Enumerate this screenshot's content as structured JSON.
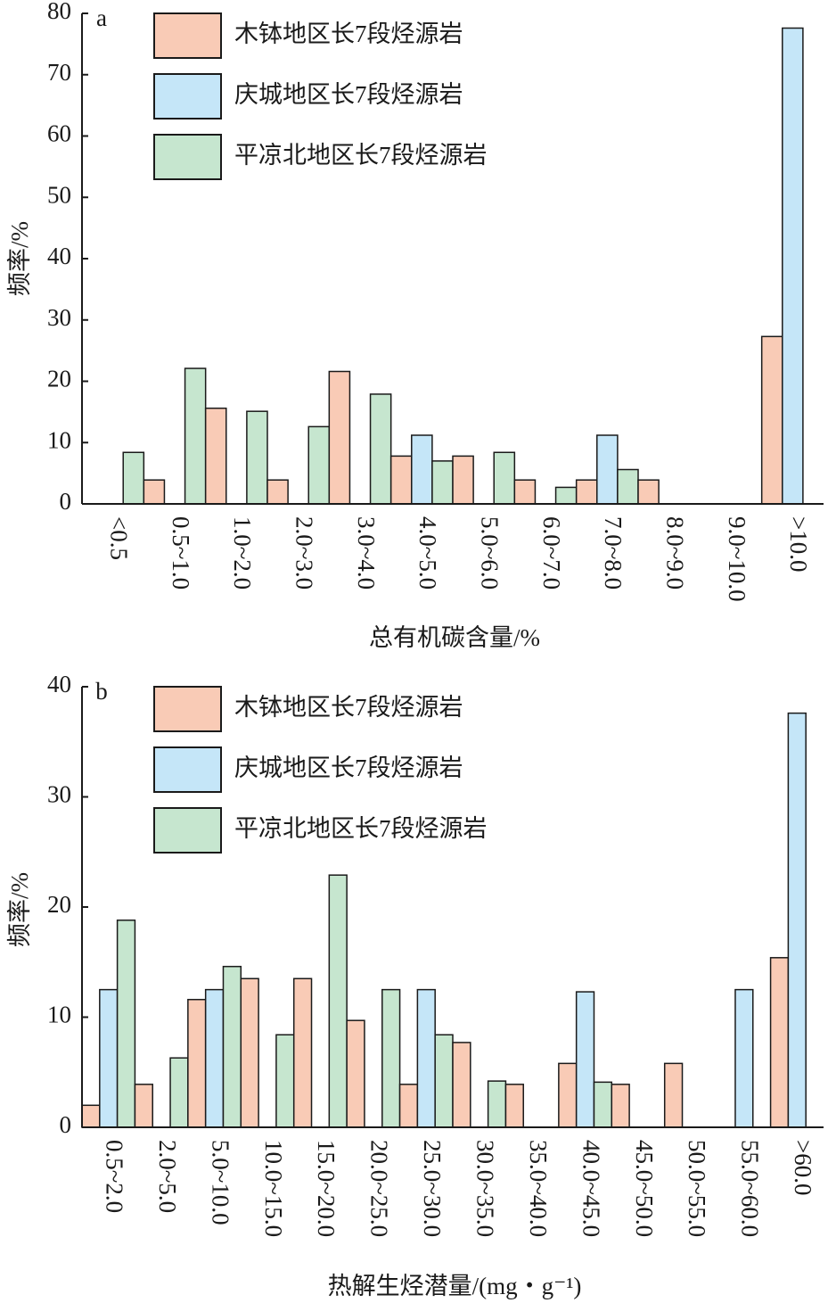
{
  "chart_data": [
    {
      "type": "bar",
      "panel": "a",
      "ylabel": "频率/%",
      "xlabel": "总有机碳含量/%",
      "categories": [
        "<0.5",
        "0.5~1.0",
        "1.0~2.0",
        "2.0~3.0",
        "3.0~4.0",
        "4.0~5.0",
        "5.0~6.0",
        "6.0~7.0",
        "7.0~8.0",
        "8.0~9.0",
        "9.0~10.0",
        ">10.0"
      ],
      "series": [
        {
          "name": "木钵地区长7段烃源岩",
          "color": "#f9cbb6",
          "values": [
            0,
            3.9,
            15.6,
            3.9,
            21.6,
            7.8,
            7.8,
            3.9,
            3.9,
            3.9,
            0,
            27.3
          ]
        },
        {
          "name": "庆城地区长7段烃源岩",
          "color": "#c5e6f8",
          "values": [
            0,
            0,
            0,
            0,
            0,
            11.2,
            0,
            0,
            11.2,
            0,
            0,
            77.6
          ]
        },
        {
          "name": "平凉北地区长7段烃源岩",
          "color": "#c6e6cf",
          "values": [
            8.4,
            22.1,
            15.1,
            12.6,
            17.9,
            7.0,
            8.4,
            2.7,
            5.6,
            0,
            0,
            0
          ]
        }
      ],
      "ylim": [
        0,
        80
      ],
      "yticks": [
        0,
        10,
        20,
        30,
        40,
        50,
        60,
        70,
        80
      ],
      "legend": "upper left"
    },
    {
      "type": "bar",
      "panel": "b",
      "ylabel": "频率/%",
      "xlabel": "热解生烃潜量/(mg・g⁻¹)",
      "categories": [
        "0.5~2.0",
        "2.0~5.0",
        "5.0~10.0",
        "10.0~15.0",
        "15.0~20.0",
        "20.0~25.0",
        "25.0~30.0",
        "30.0~35.0",
        "35.0~40.0",
        "40.0~45.0",
        "45.0~50.0",
        "50.0~55.0",
        "55.0~60.0",
        ">60.0"
      ],
      "series": [
        {
          "name": "木钵地区长7段烃源岩",
          "color": "#f9cbb6",
          "values": [
            2.0,
            3.9,
            11.6,
            13.5,
            13.5,
            9.7,
            3.9,
            7.7,
            3.9,
            5.8,
            3.9,
            5.8,
            0,
            15.4
          ]
        },
        {
          "name": "庆城地区长7段烃源岩",
          "color": "#c5e6f8",
          "values": [
            12.5,
            0,
            12.5,
            0,
            0,
            0,
            12.5,
            0,
            0,
            12.3,
            0,
            0,
            12.5,
            37.6
          ]
        },
        {
          "name": "平凉北地区长7段烃源岩",
          "color": "#c6e6cf",
          "values": [
            18.8,
            6.3,
            14.6,
            8.4,
            22.9,
            12.5,
            8.4,
            4.2,
            0,
            4.1,
            0,
            0,
            0,
            0
          ]
        }
      ],
      "ylim": [
        0,
        40
      ],
      "yticks": [
        0,
        10,
        20,
        30,
        40
      ],
      "legend": "upper left"
    }
  ]
}
